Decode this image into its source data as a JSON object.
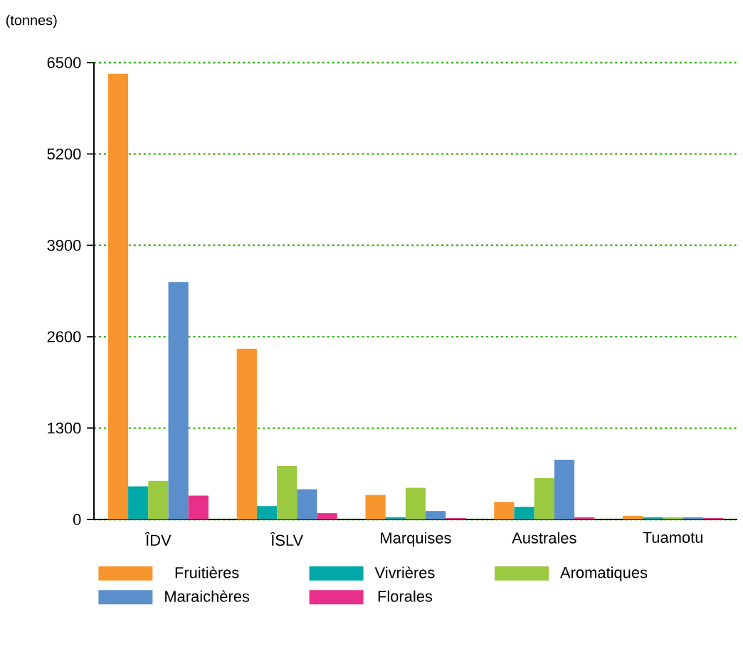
{
  "chart_data": {
    "type": "bar",
    "ylabel": "(tonnes)",
    "categories": [
      "ÎDV",
      "ÎSLV",
      "Marquises",
      "Australes",
      "Tuamotu"
    ],
    "series": [
      {
        "name": "Fruitières",
        "color": "#f7962e",
        "values": [
          6340,
          2430,
          350,
          250,
          50
        ]
      },
      {
        "name": "Vivrières",
        "color": "#00a8a8",
        "values": [
          470,
          190,
          30,
          180,
          30
        ]
      },
      {
        "name": "Aromatiques",
        "color": "#9bc93f",
        "values": [
          550,
          760,
          450,
          590,
          30
        ]
      },
      {
        "name": "Maraichères",
        "color": "#5b8fcb",
        "values": [
          3380,
          430,
          120,
          850,
          30
        ]
      },
      {
        "name": "Florales",
        "color": "#e8308a",
        "values": [
          340,
          90,
          20,
          30,
          20
        ]
      }
    ],
    "ylim": [
      0,
      6500
    ],
    "yticks": [
      0,
      1300,
      2600,
      3900,
      5200,
      6500
    ],
    "grid": "y",
    "legend": "bottom"
  }
}
